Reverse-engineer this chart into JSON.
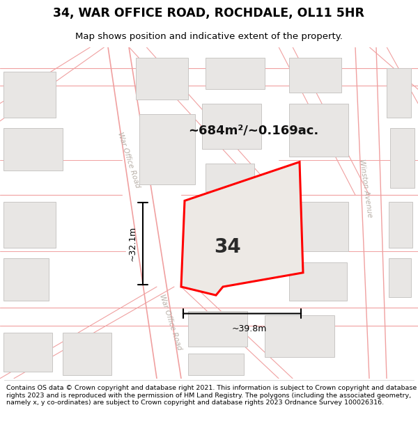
{
  "title": "34, WAR OFFICE ROAD, ROCHDALE, OL11 5HR",
  "subtitle": "Map shows position and indicative extent of the property.",
  "area_label": "~684m²/~0.169ac.",
  "dim_vertical": "~32.1m",
  "dim_horizontal": "~39.8m",
  "plot_number": "34",
  "footer": "Contains OS data © Crown copyright and database right 2021. This information is subject to Crown copyright and database rights 2023 and is reproduced with the permission of HM Land Registry. The polygons (including the associated geometry, namely x, y co-ordinates) are subject to Crown copyright and database rights 2023 Ordnance Survey 100026316.",
  "map_bg": "#f8f7f5",
  "road_line_color": "#f0a0a0",
  "road_fill_color": "#fde8e8",
  "building_color": "#e8e6e4",
  "building_edge": "#c8c6c4",
  "plot_fill": "#ede9e5",
  "plot_edge": "#ff0000",
  "road_label_color": "#b8b0a8",
  "title_color": "#000000",
  "dim_color": "#111111",
  "label_color": "#111111"
}
